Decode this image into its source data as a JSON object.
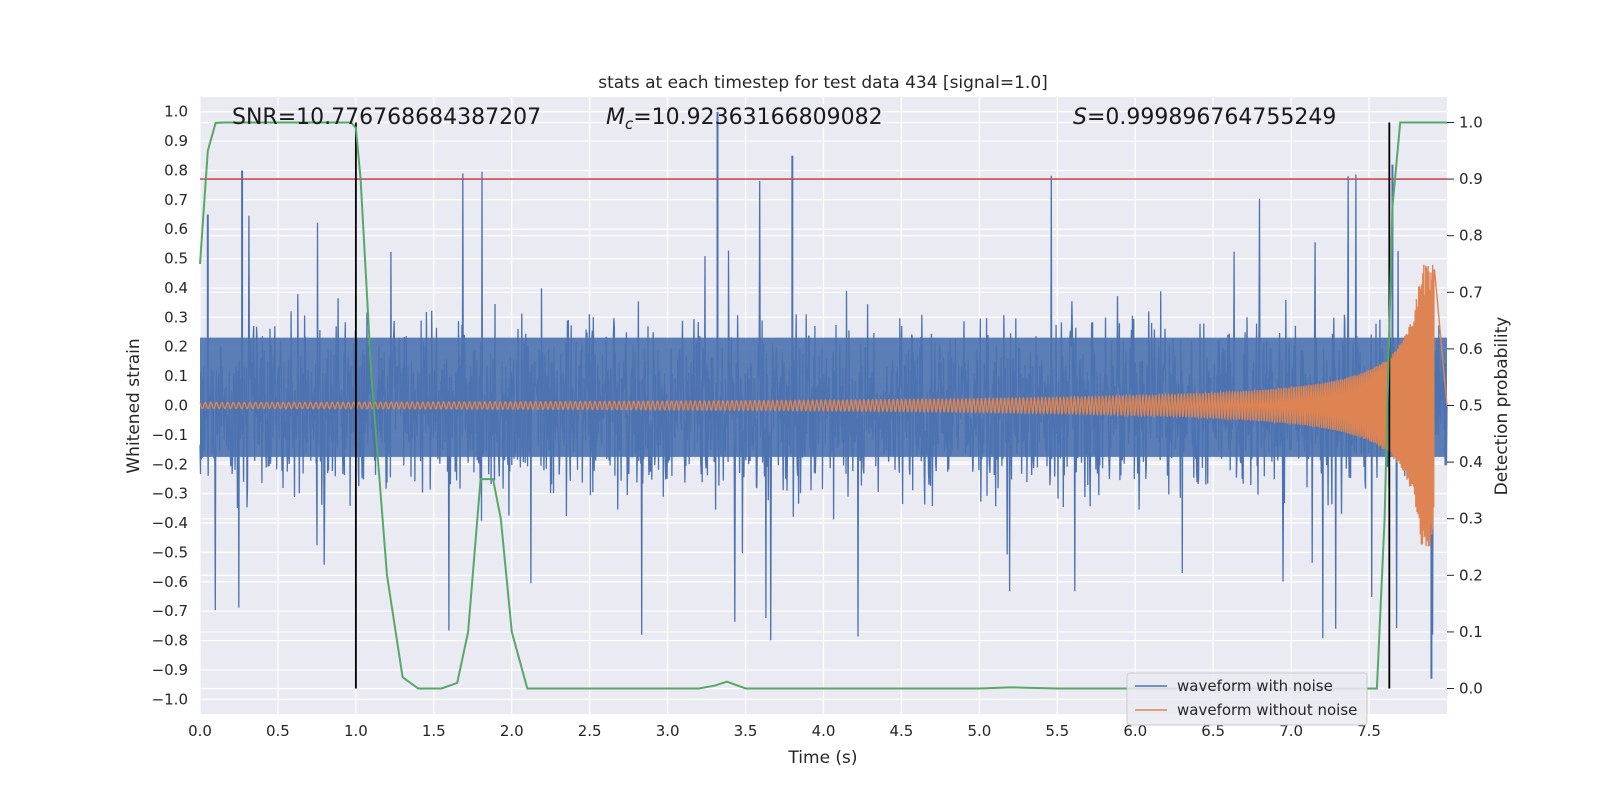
{
  "chart_data": {
    "type": "line",
    "title": "stats at each timestep for test data 434 [signal=1.0]",
    "xlabel": "Time (s)",
    "ylabel": "Whitened strain",
    "y2label": "Detection probability",
    "xlim": [
      0.0,
      8.0
    ],
    "ylim": [
      -1.05,
      1.05
    ],
    "y2lim": [
      -0.045,
      1.045
    ],
    "x_ticks": [
      "0.0",
      "0.5",
      "1.0",
      "1.5",
      "2.0",
      "2.5",
      "3.0",
      "3.5",
      "4.0",
      "4.5",
      "5.0",
      "5.5",
      "6.0",
      "6.5",
      "7.0",
      "7.5"
    ],
    "y_ticks": [
      "1.0",
      "0.9",
      "0.8",
      "0.7",
      "0.6",
      "0.5",
      "0.4",
      "0.3",
      "0.2",
      "0.1",
      "0.0",
      "−0.1",
      "−0.2",
      "−0.3",
      "−0.4",
      "−0.5",
      "−0.6",
      "−0.7",
      "−0.8",
      "−0.9",
      "−1.0"
    ],
    "y2_ticks": [
      "1.0",
      "0.9",
      "0.8",
      "0.7",
      "0.6",
      "0.5",
      "0.4",
      "0.3",
      "0.2",
      "0.1",
      "0.0"
    ],
    "grid": true,
    "legend_position": "lower-right",
    "annotations": {
      "snr": "SNR=10.776768684387207",
      "mc_symbol": "M",
      "mc_subscript": "c",
      "mc_value": "=10.92363166809082",
      "s_symbol": "S",
      "s_value": "=0.999896764755249"
    },
    "threshold_line": {
      "y2": 0.9,
      "color": "#c44e52"
    },
    "vertical_markers": [
      1.0,
      7.63
    ],
    "series": [
      {
        "name": "waveform with noise",
        "color": "#4c72b0",
        "style": "dense-noise",
        "approx_envelope": {
          "typical_upper": 0.42,
          "typical_lower": -0.35,
          "max": 1.0,
          "min": -0.93
        },
        "notable_peaks": [
          [
            0.05,
            0.65
          ],
          [
            0.27,
            0.8
          ],
          [
            3.32,
            1.0
          ],
          [
            3.8,
            0.85
          ],
          [
            7.65,
            0.82
          ],
          [
            7.9,
            -0.93
          ]
        ]
      },
      {
        "name": "waveform without noise",
        "color": "#dd8452",
        "style": "chirp",
        "t_merger": 7.92,
        "amplitude_start": 0.01,
        "amplitude_peak": 0.48
      },
      {
        "name": "detection probability",
        "color": "#55a868",
        "axis": "right",
        "x": [
          0.0,
          0.05,
          0.1,
          0.15,
          0.3,
          0.6,
          0.9,
          0.97,
          1.0,
          1.03,
          1.1,
          1.2,
          1.3,
          1.4,
          1.55,
          1.65,
          1.72,
          1.8,
          1.88,
          1.93,
          2.0,
          2.1,
          2.2,
          3.2,
          3.3,
          3.38,
          3.5,
          4.0,
          5.0,
          5.2,
          5.5,
          6.0,
          6.5,
          7.0,
          7.55,
          7.6,
          7.65,
          7.7,
          8.0
        ],
        "y": [
          0.75,
          0.95,
          0.999,
          1.0,
          1.0,
          1.0,
          1.0,
          1.0,
          0.99,
          0.9,
          0.55,
          0.2,
          0.02,
          0.0,
          0.0,
          0.01,
          0.1,
          0.37,
          0.37,
          0.3,
          0.1,
          0.0,
          0.0,
          0.0,
          0.005,
          0.012,
          0.0,
          0.0,
          0.0,
          0.002,
          0.0,
          0.0,
          0.0,
          0.0,
          0.0,
          0.3,
          0.85,
          1.0,
          1.0
        ]
      }
    ]
  }
}
